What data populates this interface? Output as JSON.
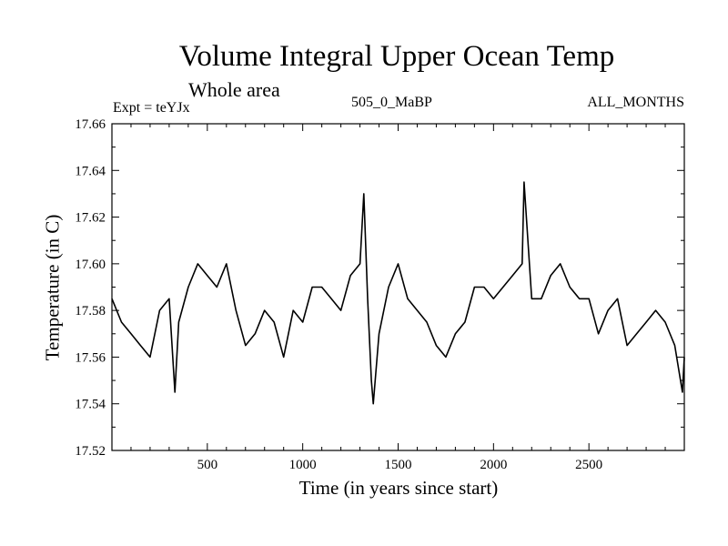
{
  "chart_data": {
    "type": "line",
    "title": "Volume Integral Upper Ocean Temp",
    "subtitle": "Whole area",
    "experiment": "Expt = teYJx",
    "run_label": "505_0_MaBP",
    "period_label": "ALL_MONTHS",
    "xlabel": "Time (in years since start)",
    "ylabel": "Temperature (in C)",
    "xlim": [
      0,
      3000
    ],
    "ylim": [
      17.52,
      17.66
    ],
    "xticks": [
      500,
      1000,
      1500,
      2000,
      2500
    ],
    "xtick_labels": [
      "500",
      "1000",
      "1500",
      "2000",
      "2500"
    ],
    "yticks": [
      17.52,
      17.54,
      17.56,
      17.58,
      17.6,
      17.62,
      17.64,
      17.66
    ],
    "ytick_labels": [
      "17.52",
      "17.54",
      "17.56",
      "17.58",
      "17.60",
      "17.62",
      "17.64",
      "17.66"
    ],
    "grid": false,
    "series": [
      {
        "name": "Volume Integral Upper Ocean Temp",
        "x": [
          0,
          50,
          100,
          150,
          200,
          250,
          300,
          330,
          350,
          400,
          450,
          500,
          550,
          600,
          650,
          700,
          750,
          800,
          850,
          900,
          950,
          1000,
          1050,
          1100,
          1150,
          1200,
          1250,
          1300,
          1320,
          1340,
          1360,
          1370,
          1400,
          1450,
          1500,
          1550,
          1600,
          1650,
          1700,
          1750,
          1800,
          1850,
          1900,
          1950,
          2000,
          2050,
          2100,
          2150,
          2160,
          2200,
          2250,
          2300,
          2350,
          2400,
          2450,
          2500,
          2550,
          2600,
          2650,
          2700,
          2750,
          2800,
          2850,
          2900,
          2950,
          2990,
          3000
        ],
        "values": [
          17.585,
          17.575,
          17.57,
          17.565,
          17.56,
          17.58,
          17.585,
          17.545,
          17.575,
          17.59,
          17.6,
          17.595,
          17.59,
          17.6,
          17.58,
          17.565,
          17.57,
          17.58,
          17.575,
          17.56,
          17.58,
          17.575,
          17.59,
          17.59,
          17.585,
          17.58,
          17.595,
          17.6,
          17.63,
          17.585,
          17.55,
          17.54,
          17.57,
          17.59,
          17.6,
          17.585,
          17.58,
          17.575,
          17.565,
          17.56,
          17.57,
          17.575,
          17.59,
          17.59,
          17.585,
          17.59,
          17.595,
          17.6,
          17.635,
          17.585,
          17.585,
          17.595,
          17.6,
          17.59,
          17.585,
          17.585,
          17.57,
          17.58,
          17.585,
          17.565,
          17.57,
          17.575,
          17.58,
          17.575,
          17.565,
          17.545,
          17.56
        ]
      }
    ]
  }
}
